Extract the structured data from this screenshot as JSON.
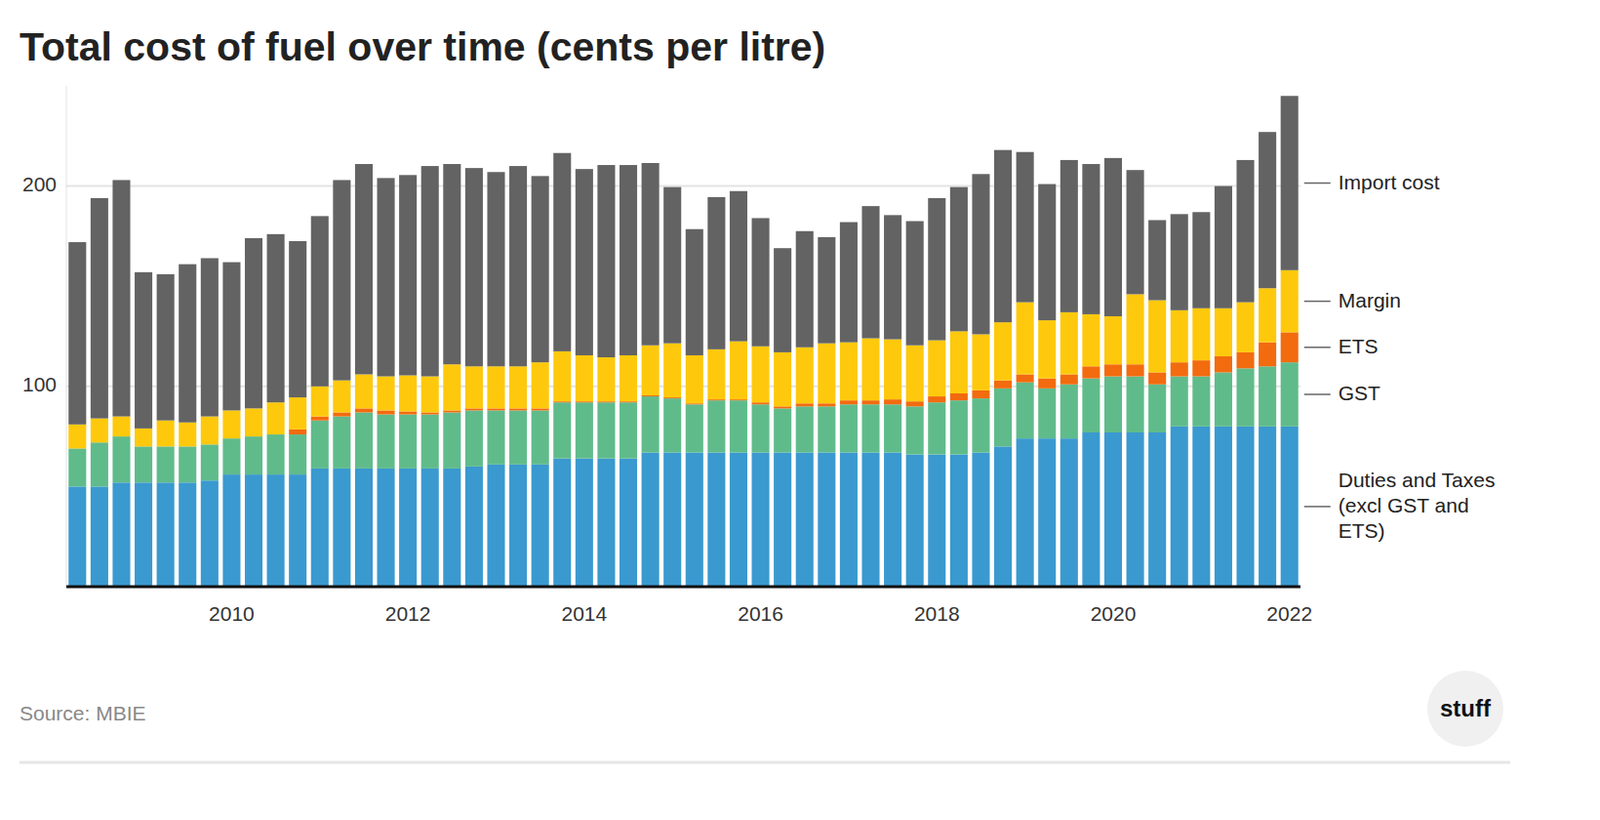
{
  "chart_data": {
    "type": "bar",
    "stacked": true,
    "grid": true,
    "title": "Total cost of fuel over time (cents per litre)",
    "source": "Source: MBIE",
    "logo": "stuff",
    "categories": [
      null,
      null,
      null,
      null,
      null,
      null,
      null,
      "2010",
      null,
      null,
      null,
      null,
      null,
      null,
      null,
      "2012",
      null,
      null,
      null,
      null,
      null,
      null,
      null,
      "2014",
      null,
      null,
      null,
      null,
      null,
      null,
      null,
      "2016",
      null,
      null,
      null,
      null,
      null,
      null,
      null,
      "2018",
      null,
      null,
      null,
      null,
      null,
      null,
      null,
      "2020",
      null,
      null,
      null,
      null,
      null,
      null,
      null,
      "2022"
    ],
    "ylim": [
      0,
      250
    ],
    "yticks": [
      100,
      200
    ],
    "series": [
      {
        "name": "Duties and Taxes (excl GST and ETS)",
        "color": "#3a99cf",
        "values": [
          50,
          50,
          52,
          52,
          52,
          52,
          53,
          56,
          56,
          56,
          56,
          59,
          59,
          59,
          59,
          59,
          59,
          59,
          60,
          61,
          61,
          61,
          64,
          64,
          64,
          64,
          67,
          67,
          67,
          67,
          67,
          67,
          67,
          67,
          67,
          67,
          67,
          67,
          66,
          66,
          66,
          67,
          70,
          74,
          74,
          74,
          77,
          77,
          77,
          77,
          80,
          80,
          80,
          80,
          80,
          80
        ]
      },
      {
        "name": "GST",
        "color": "#60bb8b",
        "values": [
          19,
          22,
          23,
          18,
          18,
          18,
          18,
          18,
          19,
          20,
          20,
          24,
          26,
          28,
          27,
          27,
          27,
          28,
          28,
          27,
          27,
          27,
          28,
          28,
          28,
          28,
          28,
          27,
          24,
          26,
          26,
          24,
          22,
          23,
          23,
          24,
          24,
          24,
          24,
          26,
          27,
          27,
          29,
          28,
          25,
          27,
          27,
          28,
          28,
          24,
          25,
          25,
          27,
          29,
          30,
          32
        ]
      },
      {
        "name": "ETS",
        "color": "#f26b0f",
        "values": [
          0,
          0,
          0,
          0,
          0,
          0,
          0,
          0,
          0,
          0,
          2.5,
          2,
          2,
          2,
          2,
          1.5,
          1,
          1,
          1,
          1,
          1,
          1,
          0.5,
          0.5,
          0.5,
          0.5,
          0.5,
          0.5,
          0.5,
          0.5,
          0.5,
          1,
          1,
          1.5,
          1.5,
          2,
          2,
          2.5,
          2.5,
          3,
          3.5,
          4,
          4,
          4,
          5,
          5,
          6,
          6,
          6,
          6,
          7,
          8,
          8,
          8,
          12,
          15
        ]
      },
      {
        "name": "Margin",
        "color": "#fec90c",
        "values": [
          12,
          12,
          10,
          9,
          13,
          12,
          14,
          14,
          14,
          16,
          16,
          15,
          16,
          17,
          17,
          18,
          18,
          23,
          21,
          21,
          21,
          23,
          25,
          23,
          22,
          23,
          25,
          27,
          24,
          25,
          29,
          28,
          27,
          28,
          30,
          29,
          31,
          30,
          28,
          28,
          31,
          28,
          29,
          36,
          29,
          31,
          26,
          24,
          35,
          36,
          26,
          26,
          24,
          25,
          27,
          31
        ]
      },
      {
        "name": "Import cost",
        "color": "#636363",
        "values": [
          91,
          110,
          118,
          78,
          73,
          79,
          79,
          74,
          85,
          84,
          78,
          85,
          100,
          105,
          99,
          100,
          105,
          100,
          99,
          97,
          100,
          93,
          99,
          93,
          96,
          95,
          91,
          78,
          63,
          76,
          75,
          64,
          52,
          58,
          53,
          60,
          66,
          62,
          62,
          71,
          72,
          80,
          86,
          75,
          68,
          76,
          75,
          79,
          62,
          40,
          48,
          48,
          61,
          71,
          78,
          87
        ]
      }
    ]
  }
}
